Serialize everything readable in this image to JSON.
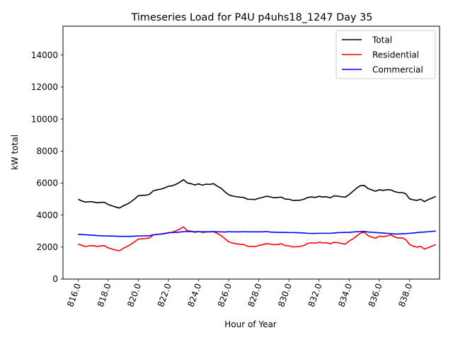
{
  "chart_data": {
    "type": "line",
    "title": "Timeseries Load for P4U p4uhs18_1247  Day 35",
    "xlabel": "Hour of Year",
    "ylabel": "kW total",
    "xlim": [
      815.0,
      840.0
    ],
    "ylim": [
      0,
      15800
    ],
    "xticks": [
      816.0,
      818.0,
      820.0,
      822.0,
      824.0,
      826.0,
      828.0,
      830.0,
      832.0,
      834.0,
      836.0,
      838.0
    ],
    "xtick_labels": [
      "816.0",
      "818.0",
      "820.0",
      "822.0",
      "824.0",
      "826.0",
      "828.0",
      "830.0",
      "832.0",
      "834.0",
      "836.0",
      "838.0"
    ],
    "yticks": [
      0,
      2000,
      4000,
      6000,
      8000,
      10000,
      12000,
      14000
    ],
    "ytick_labels": [
      "0",
      "2000",
      "4000",
      "6000",
      "8000",
      "10000",
      "12000",
      "14000"
    ],
    "legend_position": "top-right",
    "grid": false,
    "x": [
      816.0,
      816.25,
      816.5,
      816.75,
      817.0,
      817.25,
      817.5,
      817.75,
      818.0,
      818.25,
      818.5,
      818.75,
      819.0,
      819.25,
      819.5,
      819.75,
      820.0,
      820.25,
      820.5,
      820.75,
      821.0,
      821.25,
      821.5,
      821.75,
      822.0,
      822.25,
      822.5,
      822.75,
      823.0,
      823.25,
      823.5,
      823.75,
      824.0,
      824.25,
      824.5,
      824.75,
      825.0,
      825.25,
      825.5,
      825.75,
      826.0,
      826.25,
      826.5,
      826.75,
      827.0,
      827.25,
      827.5,
      827.75,
      828.0,
      828.25,
      828.5,
      828.75,
      829.0,
      829.25,
      829.5,
      829.75,
      830.0,
      830.25,
      830.5,
      830.75,
      831.0,
      831.25,
      831.5,
      831.75,
      832.0,
      832.25,
      832.5,
      832.75,
      833.0,
      833.25,
      833.5,
      833.75,
      834.0,
      834.25,
      834.5,
      834.75,
      835.0,
      835.25,
      835.5,
      835.75,
      836.0,
      836.25,
      836.5,
      836.75,
      837.0,
      837.25,
      837.5,
      837.75,
      838.0,
      838.25,
      838.5,
      838.75,
      839.0,
      839.25,
      839.5,
      839.75
    ],
    "series": [
      {
        "name": "Total",
        "color": "#000000",
        "values": [
          4990,
          4880,
          4810,
          4840,
          4820,
          4770,
          4790,
          4800,
          4660,
          4580,
          4500,
          4440,
          4580,
          4680,
          4820,
          5000,
          5210,
          5230,
          5240,
          5300,
          5520,
          5580,
          5620,
          5700,
          5800,
          5830,
          5920,
          6050,
          6210,
          6010,
          5960,
          5880,
          5950,
          5870,
          5930,
          5920,
          5960,
          5800,
          5680,
          5450,
          5270,
          5190,
          5150,
          5120,
          5100,
          4990,
          4980,
          4970,
          5050,
          5100,
          5180,
          5140,
          5080,
          5100,
          5120,
          5000,
          4990,
          4920,
          4920,
          4930,
          4990,
          5100,
          5130,
          5100,
          5170,
          5130,
          5140,
          5080,
          5200,
          5180,
          5140,
          5120,
          5290,
          5480,
          5690,
          5840,
          5850,
          5660,
          5570,
          5490,
          5580,
          5540,
          5580,
          5580,
          5470,
          5410,
          5410,
          5340,
          5020,
          4950,
          4920,
          4990,
          4840,
          4970,
          5060,
          5170
        ]
      },
      {
        "name": "Residential",
        "color": "#ff0000",
        "values": [
          2190,
          2110,
          2030,
          2080,
          2090,
          2040,
          2070,
          2090,
          1950,
          1880,
          1810,
          1770,
          1920,
          2040,
          2160,
          2330,
          2500,
          2520,
          2530,
          2580,
          2760,
          2790,
          2820,
          2860,
          2880,
          2920,
          3020,
          3120,
          3260,
          3030,
          2990,
          2920,
          2970,
          2920,
          2940,
          2950,
          2960,
          2850,
          2720,
          2520,
          2330,
          2250,
          2210,
          2170,
          2160,
          2050,
          2040,
          2030,
          2100,
          2150,
          2210,
          2190,
          2150,
          2160,
          2210,
          2090,
          2080,
          2010,
          2020,
          2040,
          2100,
          2230,
          2270,
          2240,
          2300,
          2260,
          2270,
          2210,
          2300,
          2270,
          2220,
          2190,
          2380,
          2510,
          2690,
          2870,
          2930,
          2720,
          2620,
          2550,
          2680,
          2650,
          2690,
          2760,
          2650,
          2560,
          2580,
          2480,
          2170,
          2050,
          2000,
          2040,
          1870,
          1970,
          2060,
          2160
        ]
      },
      {
        "name": "Commercial",
        "color": "#0000ff",
        "values": [
          2800,
          2780,
          2770,
          2750,
          2740,
          2720,
          2710,
          2700,
          2690,
          2690,
          2680,
          2670,
          2670,
          2670,
          2670,
          2680,
          2700,
          2700,
          2700,
          2710,
          2770,
          2790,
          2810,
          2840,
          2900,
          2910,
          2920,
          2940,
          2960,
          2980,
          2970,
          2960,
          2970,
          2950,
          2960,
          2960,
          2970,
          2950,
          2950,
          2940,
          2960,
          2950,
          2950,
          2950,
          2960,
          2950,
          2950,
          2950,
          2950,
          2950,
          2970,
          2940,
          2930,
          2920,
          2920,
          2920,
          2910,
          2910,
          2900,
          2890,
          2880,
          2860,
          2850,
          2850,
          2860,
          2860,
          2860,
          2860,
          2880,
          2900,
          2910,
          2920,
          2920,
          2940,
          2960,
          2970,
          2980,
          2940,
          2930,
          2910,
          2890,
          2880,
          2860,
          2840,
          2820,
          2820,
          2830,
          2840,
          2860,
          2880,
          2900,
          2930,
          2940,
          2960,
          2980,
          3000
        ]
      }
    ]
  }
}
